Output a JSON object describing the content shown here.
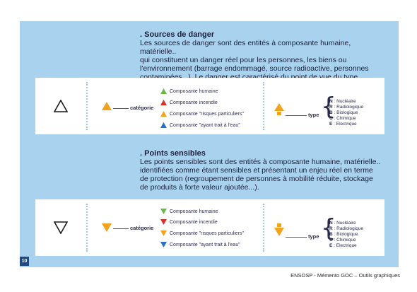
{
  "sources": {
    "title": ". Sources de danger",
    "body": "Les sources de danger sont des entités à composante humaine, matérielle..\nqui constituent un danger réel pour les personnes, les biens ou\nl'environnement (barrage endommagé, source radioactive, personnes\ncontaminées...). Le danger est caractérisé du point de vue du type.",
    "category_label": "catégorie",
    "type_label": "type",
    "legend": [
      {
        "label": "Composante humaine",
        "color": "#69b84a"
      },
      {
        "label": "Composante incendie",
        "color": "#d8312a"
      },
      {
        "label": "Composante \"risques particuliers\"",
        "color": "#f3a21d"
      },
      {
        "label": "Composante \"ayant trait à l'eau\"",
        "color": "#2f6fc1"
      }
    ]
  },
  "sensibles": {
    "title": ". Points sensibles",
    "body": "Les points sensibles sont des entités à composante humaine, matérielle..\nidentifiées comme étant sensibles et présentant un enjeu réel en terme\nde protection (regroupement de personnes à mobilité réduite, stockage\nde produits à forte valeur ajoutée...).",
    "category_label": "catégorie",
    "type_label": "type",
    "legend": [
      {
        "label": "Composante humaine",
        "color": "#69b84a"
      },
      {
        "label": "Composante incendie",
        "color": "#d8312a"
      },
      {
        "label": "Composante \"risques particuliers\"",
        "color": "#f3a21d"
      },
      {
        "label": "Composante \"ayant trait à l'eau\"",
        "color": "#2f6fc1"
      }
    ]
  },
  "types": [
    {
      "code": "N",
      "label": "Nucléaire"
    },
    {
      "code": "R",
      "label": "Radiologique"
    },
    {
      "code": "B",
      "label": "Biologique"
    },
    {
      "code": "C",
      "label": "Chimique"
    },
    {
      "code": "E",
      "label": "Electrique"
    }
  ],
  "accent_orange": "#f3a21d",
  "page_number": "10",
  "footer": "ENSOSP - Mémento GOC – Outils graphiques"
}
